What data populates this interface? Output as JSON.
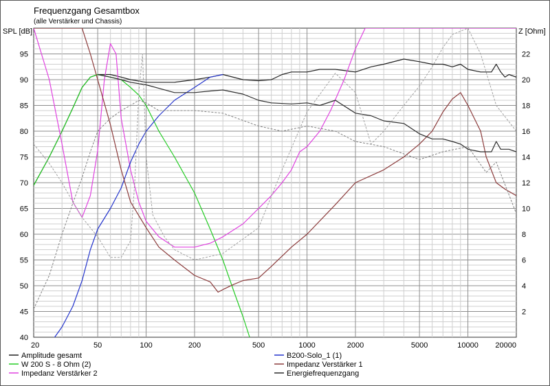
{
  "chart_data": {
    "type": "line",
    "title": "Frequenzgang Gesamtbox",
    "subtitle": "(alle Verstärker und Chassis)",
    "ylabel_left": "SPL [dB]",
    "ylabel_right": "Z [Ohm]",
    "x_scale": "log",
    "xlim": [
      20,
      20000
    ],
    "ylim_left": [
      40,
      100
    ],
    "ylim_right": [
      0,
      24
    ],
    "x_ticks": [
      "20",
      "50",
      "100",
      "200",
      "500",
      "1000",
      "2000",
      "5000",
      "10000",
      "20000"
    ],
    "y_ticks_left": [
      "40",
      "45",
      "50",
      "55",
      "60",
      "65",
      "70",
      "75",
      "80",
      "85",
      "90",
      "95"
    ],
    "y_ticks_right": [
      "2",
      "4",
      "6",
      "8",
      "10",
      "12",
      "14",
      "16",
      "18",
      "20",
      "22"
    ],
    "grid": true,
    "series": [
      {
        "name": "Amplitude gesamt",
        "axis": "left",
        "color": "#202020",
        "points": [
          [
            20,
            69.5
          ],
          [
            25,
            75
          ],
          [
            30,
            80
          ],
          [
            35,
            84.5
          ],
          [
            40,
            88.5
          ],
          [
            45,
            90.5
          ],
          [
            50,
            91
          ],
          [
            60,
            91
          ],
          [
            70,
            90.5
          ],
          [
            80,
            90
          ],
          [
            100,
            89.5
          ],
          [
            150,
            89.5
          ],
          [
            200,
            90
          ],
          [
            250,
            90.5
          ],
          [
            300,
            91
          ],
          [
            400,
            90
          ],
          [
            500,
            89.8
          ],
          [
            600,
            90
          ],
          [
            700,
            91
          ],
          [
            800,
            91.5
          ],
          [
            1000,
            91.5
          ],
          [
            1200,
            92
          ],
          [
            1500,
            92
          ],
          [
            2000,
            91.5
          ],
          [
            2500,
            92.5
          ],
          [
            3000,
            93
          ],
          [
            4000,
            94
          ],
          [
            5000,
            93.5
          ],
          [
            6000,
            93
          ],
          [
            7000,
            93
          ],
          [
            8000,
            92.5
          ],
          [
            9000,
            93
          ],
          [
            10000,
            92
          ],
          [
            12000,
            91.5
          ],
          [
            14000,
            91.5
          ],
          [
            15000,
            93
          ],
          [
            16000,
            91.5
          ],
          [
            17000,
            90.5
          ],
          [
            18000,
            91
          ],
          [
            20000,
            90.5
          ]
        ]
      },
      {
        "name": "W 200 S - 8 Ohm (2)",
        "axis": "left",
        "color": "#22cc22",
        "points": [
          [
            20,
            69.5
          ],
          [
            25,
            75
          ],
          [
            30,
            80
          ],
          [
            35,
            84.5
          ],
          [
            40,
            88.5
          ],
          [
            45,
            90.5
          ],
          [
            50,
            91
          ],
          [
            60,
            90.5
          ],
          [
            70,
            90
          ],
          [
            80,
            88.5
          ],
          [
            90,
            87
          ],
          [
            100,
            85
          ],
          [
            120,
            80
          ],
          [
            150,
            75
          ],
          [
            200,
            68
          ],
          [
            250,
            61
          ],
          [
            300,
            55
          ],
          [
            350,
            49
          ],
          [
            400,
            44
          ],
          [
            440,
            40
          ]
        ]
      },
      {
        "name": "Impedanz Verstärker 2",
        "axis": "right",
        "color": "#e040e0",
        "points": [
          [
            20,
            24
          ],
          [
            25,
            20
          ],
          [
            30,
            15
          ],
          [
            35,
            10.5
          ],
          [
            40,
            9.3
          ],
          [
            45,
            11
          ],
          [
            50,
            14.5
          ],
          [
            55,
            20
          ],
          [
            60,
            22.8
          ],
          [
            65,
            22
          ],
          [
            70,
            17
          ],
          [
            80,
            13
          ],
          [
            90,
            10.5
          ],
          [
            100,
            9
          ],
          [
            120,
            7.8
          ],
          [
            150,
            7
          ],
          [
            200,
            7
          ],
          [
            250,
            7.3
          ],
          [
            300,
            7.8
          ],
          [
            400,
            8.8
          ],
          [
            500,
            10
          ],
          [
            600,
            11
          ],
          [
            700,
            12
          ],
          [
            800,
            13
          ],
          [
            900,
            14.4
          ],
          [
            1000,
            14.8
          ],
          [
            1200,
            16
          ],
          [
            1400,
            17.6
          ],
          [
            1700,
            20
          ],
          [
            2000,
            22.4
          ],
          [
            2300,
            24
          ],
          [
            20000,
            24
          ]
        ]
      },
      {
        "name": "B200-Solo_1 (1)",
        "axis": "left",
        "color": "#2233cc",
        "points": [
          [
            20,
            38
          ],
          [
            27,
            40
          ],
          [
            30,
            42
          ],
          [
            35,
            46
          ],
          [
            40,
            51
          ],
          [
            45,
            57
          ],
          [
            50,
            61
          ],
          [
            60,
            65
          ],
          [
            70,
            69
          ],
          [
            80,
            74
          ],
          [
            90,
            77.5
          ],
          [
            100,
            80
          ],
          [
            120,
            83
          ],
          [
            150,
            86
          ],
          [
            200,
            88.5
          ],
          [
            250,
            90.5
          ],
          [
            300,
            91
          ]
        ]
      },
      {
        "name": "Impedanz Verstärker 1",
        "axis": "right",
        "color": "#8b3a3a",
        "points": [
          [
            20,
            24
          ],
          [
            40,
            24
          ],
          [
            45,
            22
          ],
          [
            50,
            20
          ],
          [
            60,
            16.5
          ],
          [
            70,
            13
          ],
          [
            80,
            10.5
          ],
          [
            100,
            8.5
          ],
          [
            120,
            7
          ],
          [
            150,
            6
          ],
          [
            200,
            4.8
          ],
          [
            250,
            4.3
          ],
          [
            280,
            3.5
          ],
          [
            300,
            3.7
          ],
          [
            350,
            4.1
          ],
          [
            400,
            4.4
          ],
          [
            500,
            4.6
          ],
          [
            600,
            5.5
          ],
          [
            800,
            7
          ],
          [
            1000,
            8
          ],
          [
            1500,
            10.3
          ],
          [
            2000,
            12
          ],
          [
            3000,
            13
          ],
          [
            4000,
            14
          ],
          [
            5000,
            15
          ],
          [
            6000,
            16
          ],
          [
            7000,
            17.5
          ],
          [
            8000,
            18.5
          ],
          [
            9000,
            19
          ],
          [
            10000,
            18
          ],
          [
            12000,
            16
          ],
          [
            13000,
            14
          ],
          [
            15000,
            12
          ],
          [
            17000,
            11.5
          ],
          [
            20000,
            11
          ]
        ]
      },
      {
        "name": "Energiefrequenzgang",
        "axis": "left",
        "color": "#2a2a2a",
        "points": [
          [
            50,
            91
          ],
          [
            60,
            90.5
          ],
          [
            70,
            90
          ],
          [
            80,
            89.5
          ],
          [
            100,
            89
          ],
          [
            150,
            87.5
          ],
          [
            200,
            87.5
          ],
          [
            250,
            87.8
          ],
          [
            300,
            88
          ],
          [
            400,
            87.2
          ],
          [
            500,
            86
          ],
          [
            600,
            85.5
          ],
          [
            800,
            85.3
          ],
          [
            1000,
            85.5
          ],
          [
            1200,
            85
          ],
          [
            1500,
            86
          ],
          [
            2000,
            83.5
          ],
          [
            2500,
            83
          ],
          [
            3000,
            82
          ],
          [
            4000,
            81.5
          ],
          [
            5000,
            79.5
          ],
          [
            6000,
            78.5
          ],
          [
            7000,
            78.5
          ],
          [
            8000,
            78
          ],
          [
            9000,
            77.5
          ],
          [
            10000,
            76.5
          ],
          [
            12000,
            76
          ],
          [
            14000,
            76
          ],
          [
            15000,
            78
          ],
          [
            16000,
            76.5
          ],
          [
            18000,
            76.5
          ],
          [
            20000,
            76
          ]
        ]
      },
      {
        "name": "",
        "axis": "left",
        "color": "#808080",
        "dashed": true,
        "points": [
          [
            20,
            45.5
          ],
          [
            25,
            52
          ],
          [
            30,
            60
          ],
          [
            35,
            66
          ],
          [
            40,
            71
          ],
          [
            45,
            76
          ],
          [
            50,
            80
          ],
          [
            60,
            82.5
          ],
          [
            70,
            84
          ],
          [
            80,
            85
          ],
          [
            90,
            86
          ],
          [
            100,
            85.5
          ],
          [
            120,
            84
          ],
          [
            150,
            84
          ],
          [
            200,
            84
          ],
          [
            300,
            83.5
          ],
          [
            500,
            81
          ],
          [
            700,
            80
          ],
          [
            1000,
            81
          ],
          [
            1500,
            80
          ],
          [
            2000,
            78
          ],
          [
            3000,
            77
          ],
          [
            5000,
            74.5
          ],
          [
            7000,
            76
          ],
          [
            10000,
            77
          ],
          [
            13000,
            72
          ],
          [
            15000,
            74
          ],
          [
            20000,
            64
          ]
        ]
      },
      {
        "name": "",
        "axis": "right",
        "color": "#a0a0a0",
        "dashed": true,
        "points": [
          [
            20,
            15
          ],
          [
            25,
            13.5
          ],
          [
            30,
            12
          ],
          [
            35,
            10.5
          ],
          [
            40,
            9.3
          ],
          [
            50,
            7.8
          ],
          [
            60,
            6.2
          ],
          [
            70,
            6.2
          ],
          [
            80,
            7.5
          ],
          [
            85,
            12
          ],
          [
            90,
            19
          ],
          [
            95,
            22
          ],
          [
            100,
            14
          ],
          [
            110,
            9.5
          ],
          [
            130,
            7.8
          ],
          [
            150,
            6.8
          ],
          [
            200,
            6
          ],
          [
            300,
            6.5
          ],
          [
            500,
            8.5
          ],
          [
            700,
            13
          ],
          [
            1000,
            17.5
          ],
          [
            1500,
            20.5
          ],
          [
            2000,
            19
          ],
          [
            2500,
            15
          ],
          [
            3000,
            16
          ],
          [
            4000,
            18
          ],
          [
            5000,
            19.5
          ],
          [
            6000,
            21
          ],
          [
            7000,
            22.5
          ],
          [
            8000,
            23.5
          ],
          [
            10000,
            24
          ],
          [
            12000,
            22
          ],
          [
            15000,
            18
          ],
          [
            20000,
            16
          ]
        ]
      }
    ]
  },
  "legend": [
    {
      "label": "Amplitude gesamt",
      "color": "#202020"
    },
    {
      "label": "W 200 S - 8 Ohm (2)",
      "color": "#22cc22"
    },
    {
      "label": "Impedanz Verstärker 2",
      "color": "#e040e0"
    },
    {
      "label": "B200-Solo_1 (1)",
      "color": "#2233cc"
    },
    {
      "label": "Impedanz Verstärker 1",
      "color": "#8b3a3a"
    },
    {
      "label": "Energiefrequenzgang",
      "color": "#2a2a2a"
    }
  ]
}
